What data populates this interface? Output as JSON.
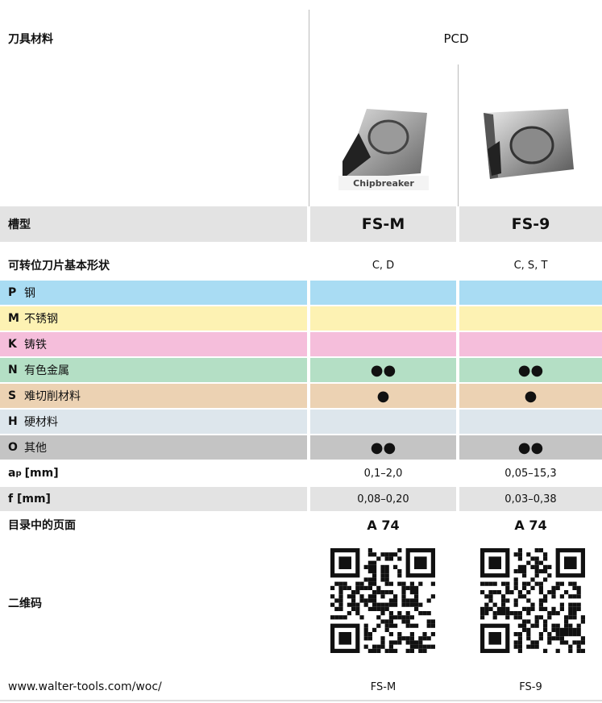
{
  "header": {
    "label": "刀具材料",
    "material": "PCD"
  },
  "insert_caption": "Chipbreaker",
  "groove": {
    "label": "槽型",
    "values": [
      "FS-M",
      "FS-9"
    ]
  },
  "shape": {
    "label": "可转位刀片基本形状",
    "values": [
      "C, D",
      "C, S, T"
    ]
  },
  "materials": [
    {
      "code": "P",
      "name": "钢",
      "values": [
        null,
        null
      ]
    },
    {
      "code": "M",
      "name": "不锈钢",
      "values": [
        null,
        null
      ]
    },
    {
      "code": "K",
      "name": "铸铁",
      "values": [
        null,
        null
      ]
    },
    {
      "code": "N",
      "name": "有色金属",
      "values": [
        "●●",
        "●●"
      ]
    },
    {
      "code": "S",
      "name": "难切削材料",
      "values": [
        "●",
        "●"
      ]
    },
    {
      "code": "H",
      "name": "硬材料",
      "values": [
        null,
        null
      ]
    },
    {
      "code": "O",
      "name": "其他",
      "values": [
        "●●",
        "●●"
      ]
    }
  ],
  "ap": {
    "label": {
      "main": "a",
      "sub": "p",
      "unit": "[mm]"
    },
    "values": [
      "0,1–2,0",
      "0,05–15,3"
    ]
  },
  "f": {
    "label": "f [mm]",
    "values": [
      "0,08–0,20",
      "0,03–0,38"
    ]
  },
  "catalog": {
    "label": "目录中的页面",
    "values": [
      "A 74",
      "A 74"
    ]
  },
  "qr": {
    "label": "二维码"
  },
  "url": {
    "label": "www.walter-tools.com/woc/",
    "values": [
      "FS-M",
      "FS-9"
    ]
  }
}
